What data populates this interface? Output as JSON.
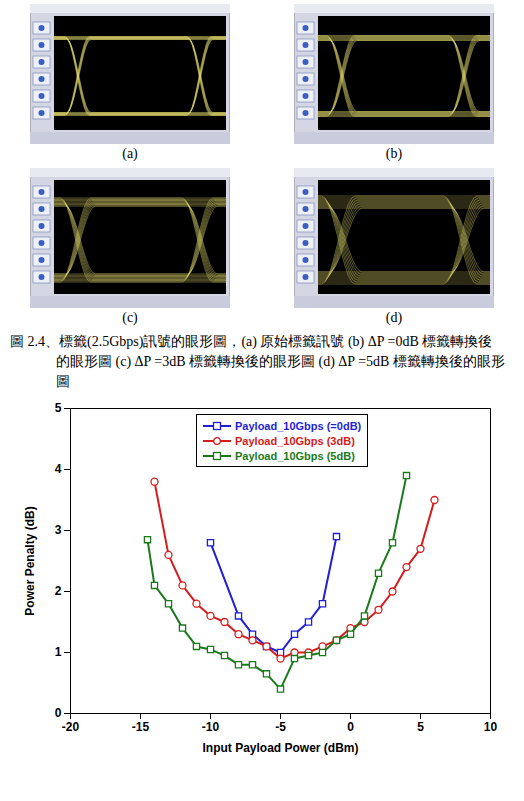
{
  "eye_diagrams": {
    "panels": [
      {
        "label": "(a)"
      },
      {
        "label": "(b)"
      },
      {
        "label": "(c)"
      },
      {
        "label": "(d)"
      }
    ],
    "caption": "圖 2.4、標籤(2.5Gbps)訊號的眼形圖，(a) 原始標籤訊號 (b) ΔP =0dB 標籤轉換後的眼形圖 (c) ΔP =3dB 標籤轉換後的眼形圖 (d) ΔP =5dB 標籤轉換後的眼形圖"
  },
  "chart_data": {
    "type": "line",
    "x_label": "Input Payload Power (dBm)",
    "y_label": "Power Penalty (dB)",
    "xlim": [
      -20,
      10
    ],
    "xticks": [
      -20,
      -15,
      -10,
      -5,
      0,
      5,
      10
    ],
    "ylim": [
      0,
      5
    ],
    "yticks": [
      0,
      1,
      2,
      3,
      4,
      5
    ],
    "grid": false,
    "legend": "top",
    "series": [
      {
        "name": "Payload_10Gbps (=0dB)",
        "color": "#1f1fd6",
        "marker": "square",
        "x": [
          -10,
          -8,
          -7,
          -6,
          -5,
          -4,
          -3,
          -2,
          -1
        ],
        "values": [
          2.8,
          1.6,
          1.3,
          1.1,
          1.0,
          1.3,
          1.5,
          1.8,
          2.9
        ]
      },
      {
        "name": "Payload_10Gbps (3dB)",
        "color": "#d41c1c",
        "marker": "circle",
        "x": [
          -14,
          -13,
          -12,
          -11,
          -10,
          -9,
          -8,
          -7,
          -6,
          -5,
          -4,
          -3,
          -2,
          -1,
          0,
          1,
          2,
          3,
          4,
          5,
          6
        ],
        "values": [
          3.8,
          2.6,
          2.1,
          1.8,
          1.6,
          1.5,
          1.3,
          1.2,
          1.1,
          0.9,
          1.0,
          1.0,
          1.1,
          1.2,
          1.4,
          1.5,
          1.7,
          2.0,
          2.4,
          2.7,
          3.5
        ]
      },
      {
        "name": "Payload_10Gbps (5dB)",
        "color": "#1a7a1a",
        "marker": "square",
        "x": [
          -14.5,
          -14,
          -13,
          -12,
          -11,
          -10,
          -9,
          -8,
          -7,
          -6,
          -5,
          -4,
          -3,
          -2,
          -1,
          0,
          1,
          2,
          3,
          4
        ],
        "values": [
          2.85,
          2.1,
          1.8,
          1.4,
          1.1,
          1.05,
          0.95,
          0.8,
          0.8,
          0.65,
          0.4,
          0.9,
          0.95,
          1.0,
          1.2,
          1.3,
          1.6,
          2.3,
          2.8,
          3.9
        ]
      }
    ]
  }
}
